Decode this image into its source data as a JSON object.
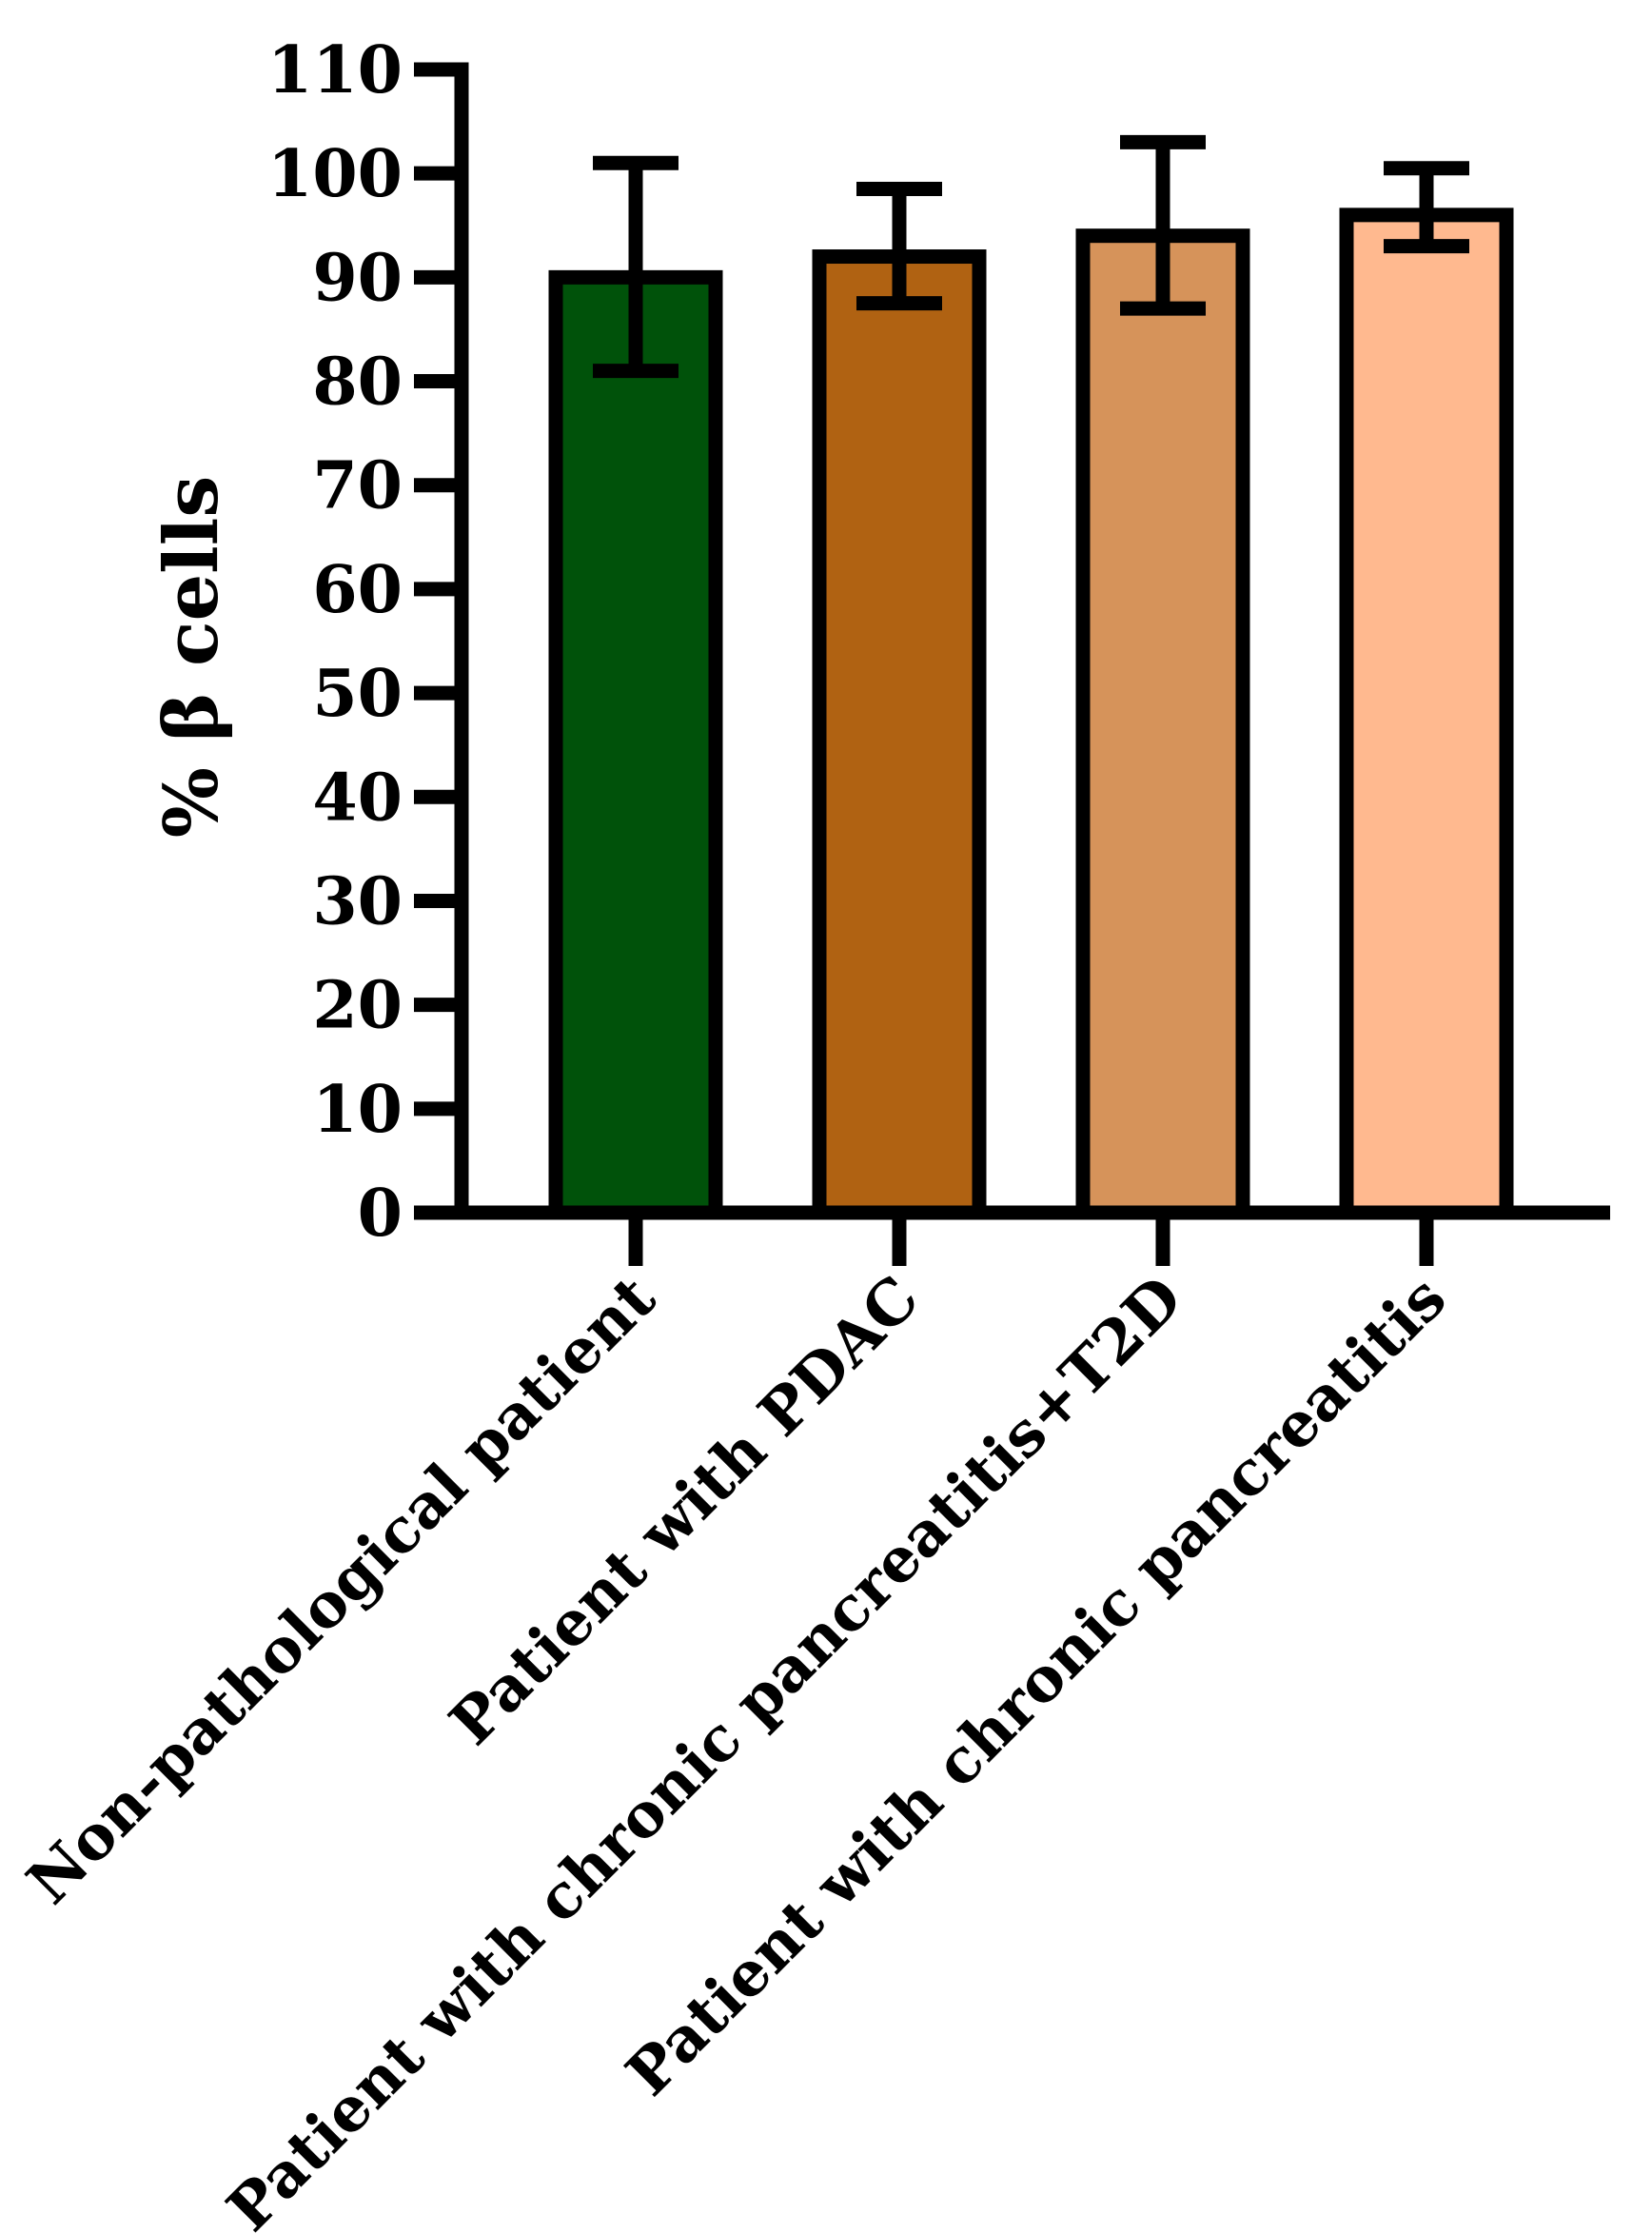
{
  "chart_data": {
    "type": "bar",
    "title": "",
    "xlabel": "",
    "ylabel": "% β cells",
    "ylim": [
      0,
      110
    ],
    "yticks": [
      0,
      10,
      20,
      30,
      40,
      50,
      60,
      70,
      80,
      90,
      100,
      110
    ],
    "grid": false,
    "legend": "none",
    "categories": [
      "Non-pathological patient",
      "Patient with PDAC",
      "Patient with chronic pancreatitis+T2D",
      "Patient with chronic pancreatitis"
    ],
    "values": [
      90,
      92,
      94,
      96
    ],
    "error_upper": [
      101,
      98.5,
      103,
      100.5
    ],
    "error_lower": [
      81,
      87.5,
      87,
      93
    ],
    "colors": [
      "#00520a",
      "#b06212",
      "#d6935a",
      "#ffb98f"
    ],
    "edge_color": "#000000"
  }
}
